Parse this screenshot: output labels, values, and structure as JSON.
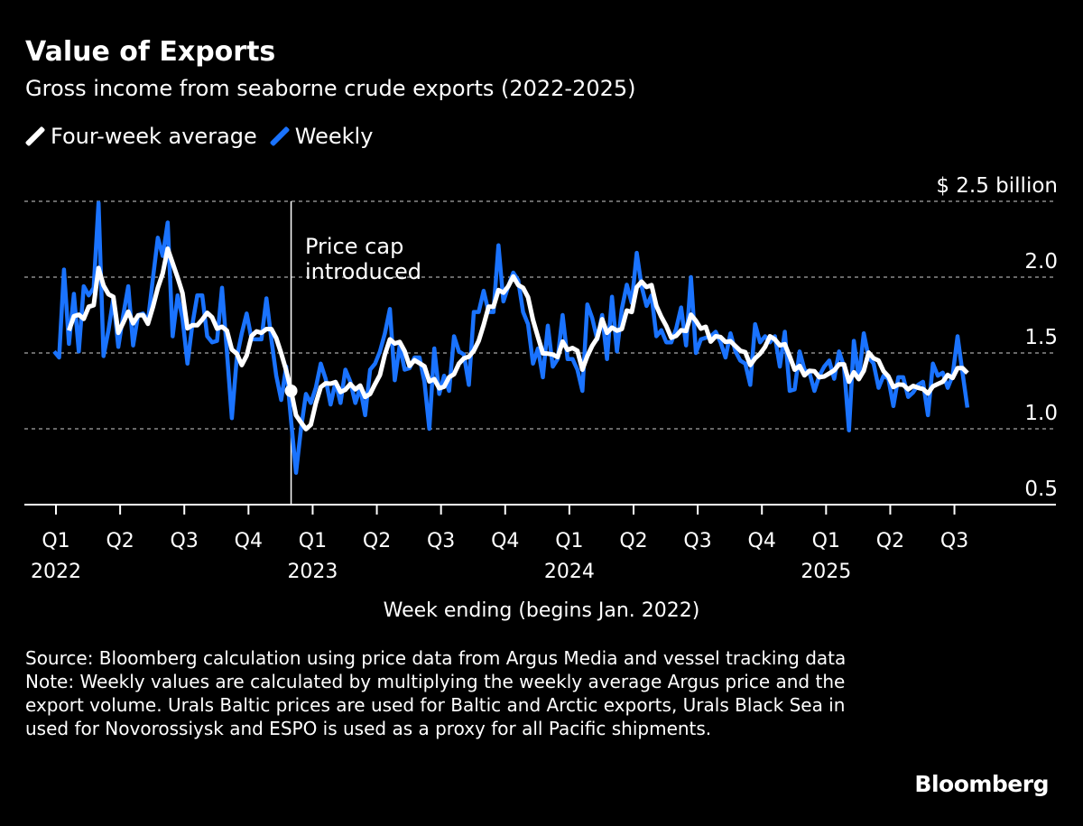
{
  "title": "Value of Exports",
  "subtitle": "Gross income from seaborne crude exports (2022-2025)",
  "legend": [
    {
      "label": "Four-week average",
      "color": "#ffffff",
      "icon": "slash-line-icon"
    },
    {
      "label": "Weekly",
      "color": "#1a73ff",
      "icon": "slash-line-icon"
    }
  ],
  "annotation": {
    "line1": "Price cap",
    "line2": "introduced",
    "week_index": 48
  },
  "footer": {
    "source": "Source: Bloomberg calculation using price data from Argus Media and vessel tracking data",
    "note": "Note: Weekly values are calculated by multiplying the weekly average Argus price and the export volume. Urals Baltic prices are used for Baltic and Arctic exports, Urals Black Sea in used for Novorossiysk and ESPO is used as a proxy for all Pacific shipments."
  },
  "logo": "Bloomberg",
  "chart_data": {
    "type": "line",
    "title": "Value of Exports",
    "xlabel": "Week ending (begins Jan. 2022)",
    "ylabel": "",
    "y_unit_label": "$ 2.5 billion",
    "ylim": [
      0.5,
      2.5
    ],
    "yticks": [
      {
        "value": 2.5,
        "label": "$ 2.5 billion"
      },
      {
        "value": 2.0,
        "label": "2.0"
      },
      {
        "value": 1.5,
        "label": "1.5"
      },
      {
        "value": 1.0,
        "label": "1.0"
      },
      {
        "value": 0.5,
        "label": "0.5"
      }
    ],
    "grid": true,
    "legend_position": "top-left",
    "xticks": [
      {
        "q": "Q1",
        "year": "2022"
      },
      {
        "q": "Q2",
        "year": ""
      },
      {
        "q": "Q3",
        "year": ""
      },
      {
        "q": "Q4",
        "year": ""
      },
      {
        "q": "Q1",
        "year": "2023"
      },
      {
        "q": "Q2",
        "year": ""
      },
      {
        "q": "Q3",
        "year": ""
      },
      {
        "q": "Q4",
        "year": ""
      },
      {
        "q": "Q1",
        "year": "2024"
      },
      {
        "q": "Q2",
        "year": ""
      },
      {
        "q": "Q3",
        "year": ""
      },
      {
        "q": "Q4",
        "year": ""
      },
      {
        "q": "Q1",
        "year": "2025"
      },
      {
        "q": "Q2",
        "year": ""
      },
      {
        "q": "Q3",
        "year": ""
      }
    ],
    "series": [
      {
        "name": "Weekly",
        "color": "#1a73ff",
        "values": [
          1.51,
          1.47,
          2.05,
          1.56,
          1.89,
          1.51,
          1.94,
          1.88,
          1.93,
          2.49,
          1.48,
          1.65,
          1.86,
          1.54,
          1.75,
          1.94,
          1.55,
          1.75,
          1.76,
          1.71,
          1.99,
          2.26,
          2.14,
          2.36,
          1.61,
          1.88,
          1.73,
          1.43,
          1.69,
          1.88,
          1.88,
          1.61,
          1.57,
          1.58,
          1.93,
          1.51,
          1.07,
          1.47,
          1.63,
          1.76,
          1.59,
          1.59,
          1.59,
          1.86,
          1.59,
          1.35,
          1.19,
          1.41,
          1.05,
          0.71,
          1.0,
          1.23,
          1.17,
          1.27,
          1.43,
          1.33,
          1.16,
          1.31,
          1.17,
          1.39,
          1.31,
          1.17,
          1.27,
          1.09,
          1.39,
          1.43,
          1.51,
          1.63,
          1.79,
          1.32,
          1.55,
          1.39,
          1.4,
          1.47,
          1.47,
          1.31,
          1.0,
          1.53,
          1.23,
          1.35,
          1.25,
          1.61,
          1.51,
          1.49,
          1.29,
          1.77,
          1.77,
          1.91,
          1.77,
          1.77,
          2.21,
          1.84,
          1.94,
          2.03,
          1.98,
          1.77,
          1.69,
          1.43,
          1.53,
          1.34,
          1.68,
          1.41,
          1.46,
          1.75,
          1.46,
          1.46,
          1.39,
          1.25,
          1.82,
          1.73,
          1.59,
          1.75,
          1.46,
          1.87,
          1.51,
          1.79,
          1.95,
          1.83,
          2.16,
          1.94,
          1.81,
          1.88,
          1.61,
          1.65,
          1.57,
          1.57,
          1.66,
          1.8,
          1.55,
          2.0,
          1.5,
          1.59,
          1.6,
          1.61,
          1.64,
          1.57,
          1.47,
          1.63,
          1.51,
          1.45,
          1.43,
          1.29,
          1.69,
          1.57,
          1.61,
          1.57,
          1.61,
          1.41,
          1.64,
          1.25,
          1.26,
          1.51,
          1.39,
          1.37,
          1.25,
          1.35,
          1.41,
          1.45,
          1.33,
          1.51,
          1.41,
          0.99,
          1.58,
          1.33,
          1.63,
          1.47,
          1.43,
          1.27,
          1.35,
          1.33,
          1.15,
          1.34,
          1.34,
          1.21,
          1.24,
          1.29,
          1.31,
          1.09,
          1.43,
          1.35,
          1.37,
          1.27,
          1.35,
          1.61,
          1.37,
          1.14
        ]
      },
      {
        "name": "Four-week average",
        "color": "#ffffff",
        "window": 4
      }
    ]
  }
}
